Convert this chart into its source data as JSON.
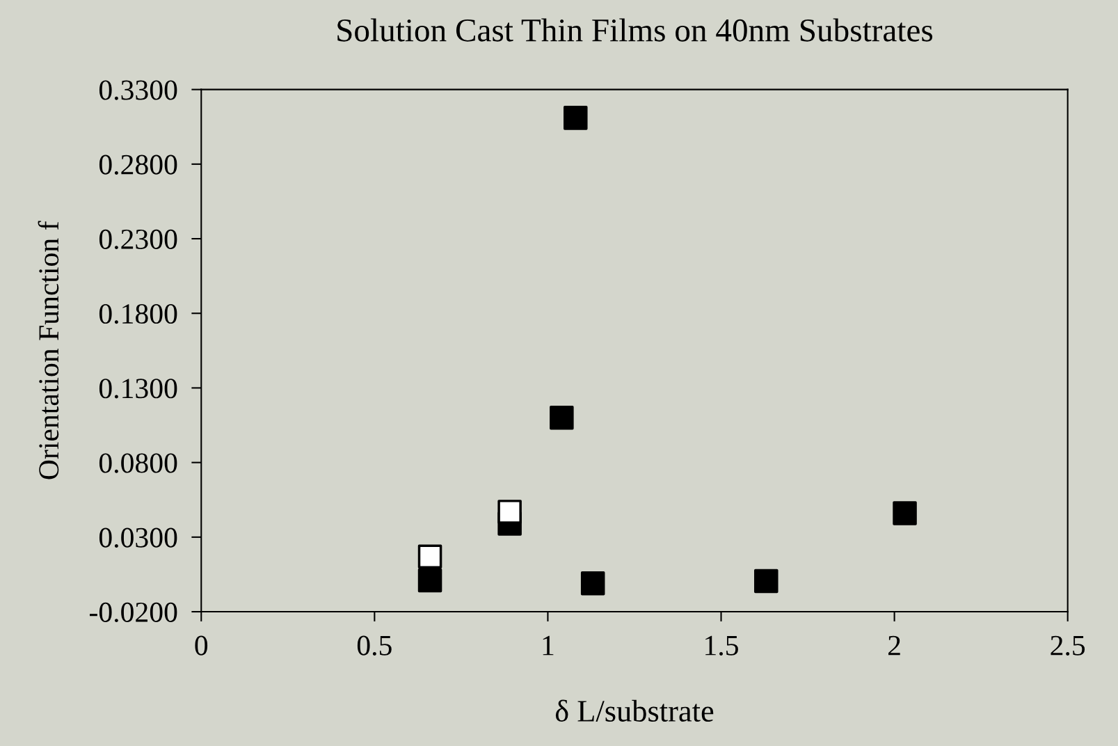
{
  "chart_data": {
    "type": "scatter",
    "title": "Solution Cast Thin Films on 40nm Substrates",
    "xlabel": "δ L/substrate",
    "ylabel": "Orientation Function f",
    "marker": "square",
    "grid": false,
    "legend": false,
    "series": [
      {
        "color": "#000000",
        "x": [
          0.66,
          0.89,
          1.04,
          1.08,
          1.13,
          1.63,
          2.03
        ],
        "values": [
          0.001,
          0.039,
          0.11,
          0.311,
          -0.001,
          0.0005,
          0.046
        ]
      },
      {
        "color": "#ffffff",
        "x": [
          0.66,
          0.89
        ],
        "values": [
          0.017,
          0.047
        ]
      }
    ],
    "xlim": [
      0,
      2.5
    ],
    "xticks": [
      0,
      0.5,
      1,
      1.5,
      2,
      2.5
    ],
    "ylim": [
      -0.02,
      0.33
    ],
    "yticks": [
      {
        "value": -0.02,
        "label": "-0.0200"
      },
      {
        "value": 0.03,
        "label": "0.0300"
      },
      {
        "value": 0.08,
        "label": "0.0800"
      },
      {
        "value": 0.13,
        "label": "0.1300"
      },
      {
        "value": 0.18,
        "label": "0.1800"
      },
      {
        "value": 0.23,
        "label": "0.2300"
      },
      {
        "value": 0.28,
        "label": "0.2800"
      },
      {
        "value": 0.33,
        "label": "0.3300"
      }
    ]
  }
}
